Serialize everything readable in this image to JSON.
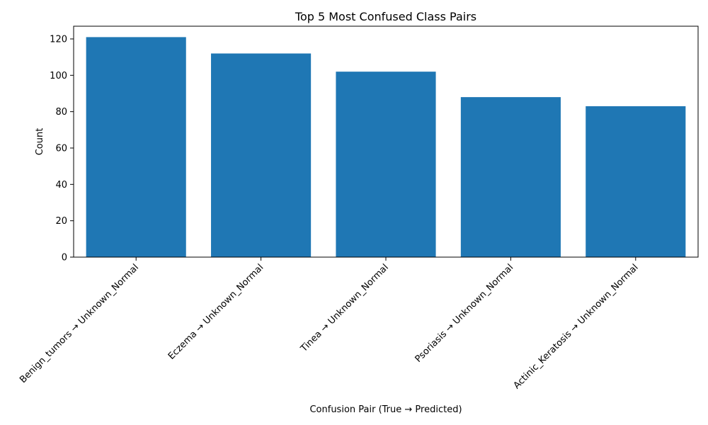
{
  "chart_data": {
    "type": "bar",
    "title": "Top 5 Most Confused Class Pairs",
    "xlabel": "Confusion Pair (True → Predicted)",
    "ylabel": "Count",
    "categories": [
      "Benign_tumors → Unknown_Normal",
      "Eczema → Unknown_Normal",
      "Tinea → Unknown_Normal",
      "Psoriasis → Unknown_Normal",
      "Actinic_Keratosis → Unknown_Normal"
    ],
    "values": [
      121,
      112,
      102,
      88,
      83
    ],
    "ylim": [
      0,
      127
    ],
    "yticks": [
      0,
      20,
      40,
      60,
      80,
      100,
      120
    ],
    "bar_color": "#1f77b4",
    "grid": false,
    "legend": "none"
  }
}
